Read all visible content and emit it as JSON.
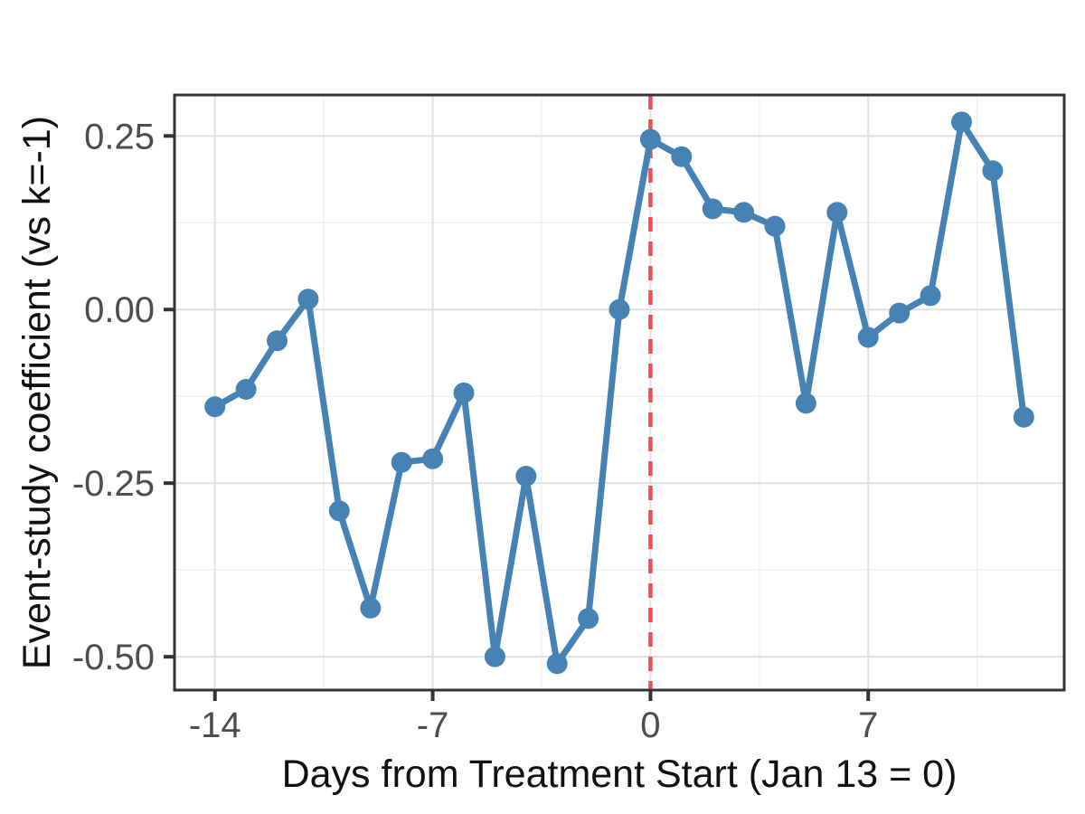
{
  "chart_data": {
    "type": "line",
    "title": "",
    "xlabel": "Days from Treatment Start (Jan 13 = 0)",
    "ylabel": "Event-study coefficient (vs k=-1)",
    "x": [
      -14,
      -13,
      -12,
      -11,
      -10,
      -9,
      -8,
      -7,
      -6,
      -5,
      -4,
      -3,
      -2,
      -1,
      0,
      1,
      2,
      3,
      4,
      5,
      6,
      7,
      8,
      9,
      10,
      11,
      12
    ],
    "series": [
      {
        "name": "event-study coefficient",
        "values": [
          -0.14,
          -0.115,
          -0.045,
          0.015,
          -0.29,
          -0.43,
          -0.22,
          -0.215,
          -0.12,
          -0.5,
          -0.24,
          -0.51,
          -0.445,
          0.0,
          0.245,
          0.22,
          0.145,
          0.14,
          0.12,
          -0.135,
          0.14,
          -0.04,
          -0.005,
          0.02,
          0.27,
          0.2,
          -0.155
        ]
      }
    ],
    "reference_line_x": 0,
    "xlim": [
      -15.3,
      13.3
    ],
    "ylim": [
      -0.548,
      0.309
    ],
    "x_ticks": [
      -14,
      -7,
      0,
      7
    ],
    "y_ticks": [
      0.25,
      0.0,
      -0.25,
      -0.5
    ],
    "x_minor_gridlines": [
      -10.5,
      -3.5,
      3.5,
      10.5
    ],
    "y_minor_gridlines": [
      0.125,
      -0.125,
      -0.375
    ],
    "grid": true,
    "legend": false,
    "colors": {
      "line": "#4682b4",
      "point": "#4682b4",
      "reference_line": "#fa4b4b",
      "grid_major": "#e3e3e3",
      "grid_minor": "#f0f0f0",
      "panel_border": "#333333",
      "tick_mark": "#333333",
      "tick_label": "#4d4d4d",
      "axis_title": "#111111",
      "panel_background": "#ffffff"
    }
  }
}
